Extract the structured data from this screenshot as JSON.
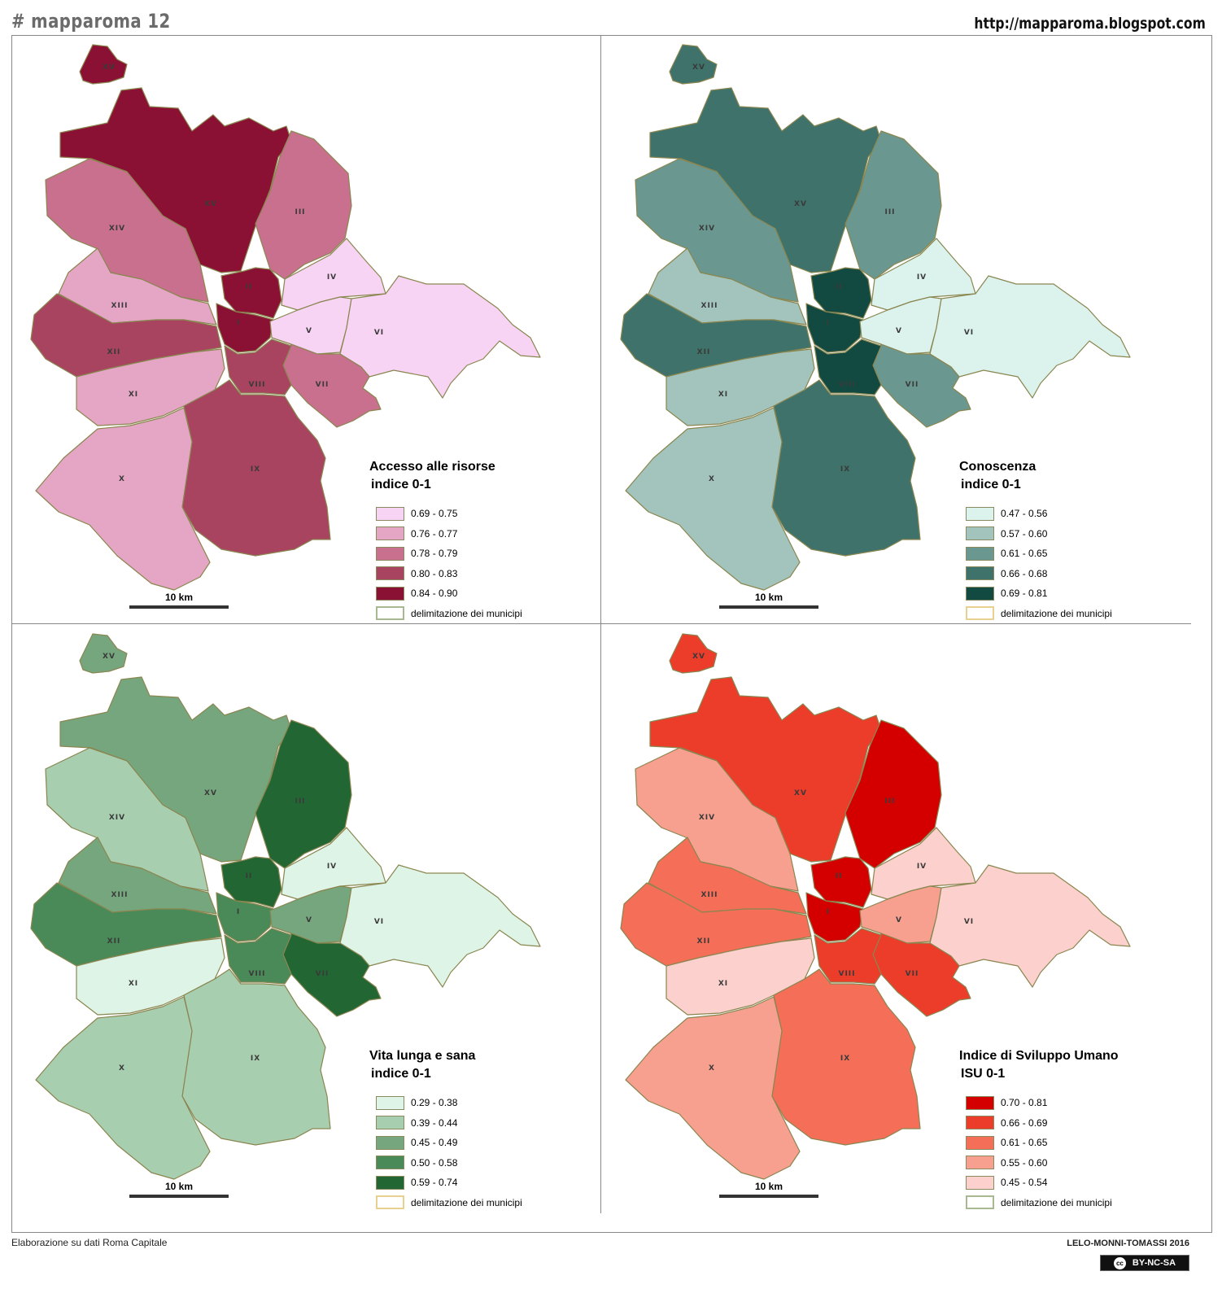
{
  "header": {
    "left": "# mapparoma 12",
    "right": "http://mapparoma.blogspot.com"
  },
  "footer": {
    "left": "Elaborazione su dati Roma Capitale",
    "right": "LELO-MONNI-TOMASSI 2016",
    "license": "BY-NC-SA",
    "license_icon": "cc"
  },
  "municipi_labels": [
    "I",
    "II",
    "III",
    "IV",
    "V",
    "VI",
    "VII",
    "VIII",
    "IX",
    "X",
    "XI",
    "XII",
    "XIII",
    "XIV",
    "XV"
  ],
  "maps": [
    {
      "title": "Accesso alle risorse",
      "subtitle": "indice 0-1",
      "scale_label": "10 km",
      "boundary_label": "delimitazione dei municipi",
      "boundary_color": "#a8b890",
      "classes": [
        {
          "range": "0.69 - 0.75",
          "color": "#f8d4f4"
        },
        {
          "range": "0.76 - 0.77",
          "color": "#e4a6c4"
        },
        {
          "range": "0.78 - 0.79",
          "color": "#c8708e"
        },
        {
          "range": "0.80 - 0.83",
          "color": "#a84460"
        },
        {
          "range": "0.84 - 0.90",
          "color": "#8a1034"
        }
      ],
      "municipi_class": {
        "I": 4,
        "II": 4,
        "III": 2,
        "IV": 0,
        "V": 0,
        "VI": 0,
        "VII": 2,
        "VIII": 3,
        "IX": 3,
        "X": 1,
        "XI": 1,
        "XII": 3,
        "XIII": 1,
        "XIV": 2,
        "XV": 4
      }
    },
    {
      "title": "Conoscenza",
      "subtitle": "indice 0-1",
      "scale_label": "10 km",
      "boundary_label": "delimitazione dei municipi",
      "boundary_color": "#e8d090",
      "classes": [
        {
          "range": "0.47 - 0.56",
          "color": "#dcf2ec"
        },
        {
          "range": "0.57 - 0.60",
          "color": "#a2c4bc"
        },
        {
          "range": "0.61 - 0.65",
          "color": "#6a9890"
        },
        {
          "range": "0.66 - 0.68",
          "color": "#3f726a"
        },
        {
          "range": "0.69 - 0.81",
          "color": "#124a42"
        }
      ],
      "municipi_class": {
        "I": 4,
        "II": 4,
        "III": 2,
        "IV": 0,
        "V": 0,
        "VI": 0,
        "VII": 2,
        "VIII": 4,
        "IX": 3,
        "X": 1,
        "XI": 1,
        "XII": 3,
        "XIII": 1,
        "XIV": 2,
        "XV": 3
      }
    },
    {
      "title": "Vita lunga e sana",
      "subtitle": "indice 0-1",
      "scale_label": "10 km",
      "boundary_label": "delimitazione dei municipi",
      "boundary_color": "#e8d090",
      "classes": [
        {
          "range": "0.29 - 0.38",
          "color": "#def4e6"
        },
        {
          "range": "0.39 - 0.44",
          "color": "#a8ceb0"
        },
        {
          "range": "0.45 - 0.49",
          "color": "#76a67e"
        },
        {
          "range": "0.50 - 0.58",
          "color": "#4a8a58"
        },
        {
          "range": "0.59 - 0.74",
          "color": "#226634"
        }
      ],
      "municipi_class": {
        "I": 3,
        "II": 4,
        "III": 4,
        "IV": 0,
        "V": 2,
        "VI": 0,
        "VII": 4,
        "VIII": 3,
        "IX": 1,
        "X": 1,
        "XI": 0,
        "XII": 3,
        "XIII": 2,
        "XIV": 1,
        "XV": 2
      }
    },
    {
      "title": "Indice di Sviluppo Umano",
      "subtitle": "ISU 0-1",
      "scale_label": "10 km",
      "boundary_label": "delimitazione dei municipi",
      "boundary_color": "#a8b890",
      "classes": [
        {
          "range": "0.70 - 0.81",
          "color": "#d40000"
        },
        {
          "range": "0.66 - 0.69",
          "color": "#ec3c2a"
        },
        {
          "range": "0.61 - 0.65",
          "color": "#f46e58"
        },
        {
          "range": "0.55 - 0.60",
          "color": "#f8a090"
        },
        {
          "range": "0.45 - 0.54",
          "color": "#fcd0cc"
        }
      ],
      "municipi_class": {
        "I": 0,
        "II": 0,
        "III": 0,
        "IV": 4,
        "V": 3,
        "VI": 4,
        "VII": 1,
        "VIII": 1,
        "IX": 2,
        "X": 3,
        "XI": 4,
        "XII": 2,
        "XIII": 2,
        "XIV": 3,
        "XV": 1
      }
    }
  ]
}
